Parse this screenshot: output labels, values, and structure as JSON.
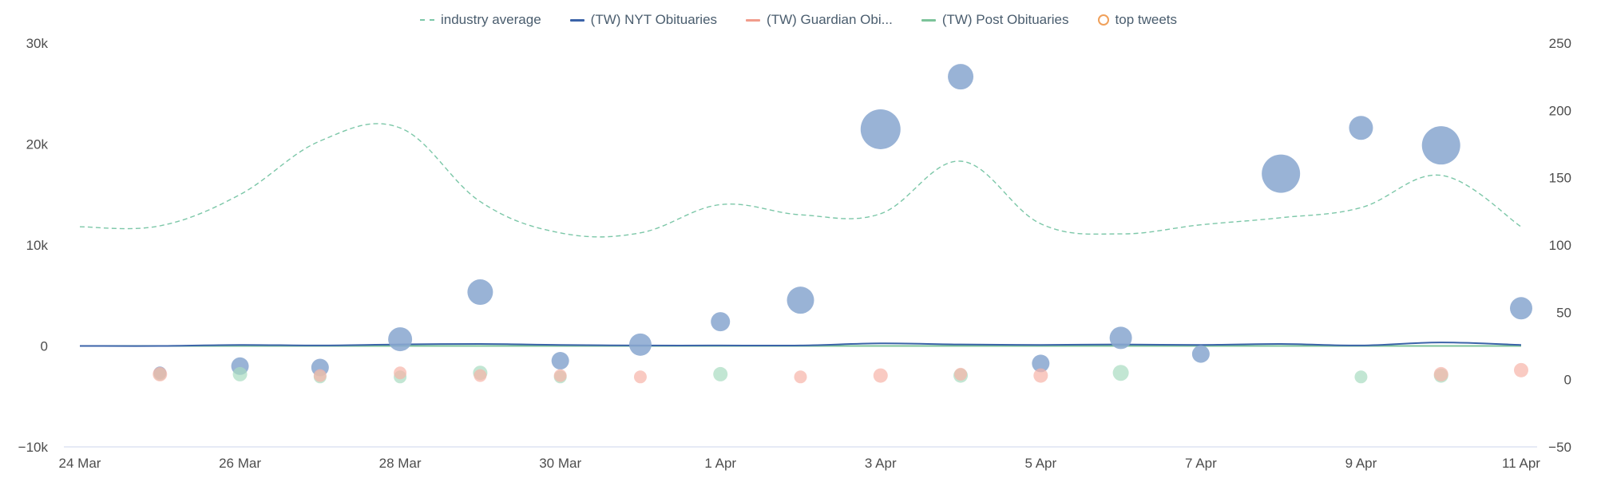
{
  "chart_data": {
    "type": "line",
    "left_axis": {
      "ticks": [
        -10000,
        0,
        10000,
        20000,
        30000
      ],
      "tick_labels": [
        "−10k",
        "0",
        "10k",
        "20k",
        "30k"
      ],
      "range": [
        -10000,
        30000
      ]
    },
    "right_axis": {
      "ticks": [
        -50,
        0,
        50,
        100,
        150,
        200,
        250
      ],
      "tick_labels": [
        "−50",
        "0",
        "50",
        "100",
        "150",
        "200",
        "250"
      ],
      "range": [
        -50,
        250
      ]
    },
    "x_tick_labels": [
      "24 Mar",
      "26 Mar",
      "28 Mar",
      "30 Mar",
      "1 Apr",
      "3 Apr",
      "5 Apr",
      "7 Apr",
      "9 Apr",
      "11 Apr"
    ],
    "x_tick_days": [
      0,
      2,
      4,
      6,
      8,
      10,
      12,
      14,
      16,
      18
    ],
    "legend_position": "top-center",
    "grid": false,
    "series": [
      {
        "name": "industry average",
        "style": "dashed",
        "axis": "left",
        "color": "#7cc7a8",
        "days": [
          0,
          1,
          2,
          3,
          4,
          5,
          6,
          7,
          8,
          9,
          10,
          11,
          12,
          13,
          14,
          15,
          16,
          17,
          18
        ],
        "values": [
          11800,
          11900,
          15000,
          20300,
          21600,
          14300,
          11200,
          11200,
          14000,
          13000,
          13100,
          18300,
          12100,
          11100,
          12000,
          12700,
          13700,
          16900,
          11800
        ]
      },
      {
        "name": "(TW) NYT Obituaries",
        "style": "line",
        "axis": "left",
        "color": "#3b63a8",
        "days": [
          0,
          1,
          2,
          3,
          4,
          5,
          6,
          7,
          8,
          9,
          10,
          11,
          12,
          13,
          14,
          15,
          16,
          17,
          18
        ],
        "values": [
          0,
          0,
          100,
          50,
          150,
          200,
          100,
          50,
          50,
          50,
          250,
          150,
          100,
          150,
          100,
          200,
          50,
          350,
          100
        ]
      },
      {
        "name": "(TW) Guardian Obi...",
        "style": "line",
        "axis": "left",
        "color": "#f19c8c",
        "days": [
          0,
          1,
          2,
          3,
          4,
          5,
          6,
          7,
          8,
          9,
          10,
          11,
          12,
          13,
          14,
          15,
          16,
          17,
          18
        ],
        "values": [
          0,
          0,
          0,
          0,
          0,
          0,
          0,
          0,
          0,
          0,
          0,
          0,
          0,
          0,
          0,
          0,
          0,
          0,
          0
        ]
      },
      {
        "name": "(TW) Post Obituaries",
        "style": "line",
        "axis": "left",
        "color": "#7cc39a",
        "days": [
          0,
          1,
          2,
          3,
          4,
          5,
          6,
          7,
          8,
          9,
          10,
          11,
          12,
          13,
          14,
          15,
          16,
          17,
          18
        ],
        "values": [
          0,
          0,
          0,
          0,
          0,
          0,
          0,
          0,
          0,
          0,
          0,
          0,
          0,
          0,
          0,
          0,
          0,
          0,
          0
        ]
      },
      {
        "name": "top tweets",
        "style": "bubble",
        "axis": "right",
        "color": "#f0a05a",
        "groups": [
          {
            "color": "#8ba8d0",
            "points": [
              {
                "day": 1,
                "value": 5,
                "r": 8
              },
              {
                "day": 2,
                "value": 10,
                "r": 11
              },
              {
                "day": 3,
                "value": 9,
                "r": 11
              },
              {
                "day": 4,
                "value": 30,
                "r": 15
              },
              {
                "day": 5,
                "value": 65,
                "r": 16
              },
              {
                "day": 6,
                "value": 14,
                "r": 11
              },
              {
                "day": 7,
                "value": 26,
                "r": 14
              },
              {
                "day": 8,
                "value": 43,
                "r": 12
              },
              {
                "day": 9,
                "value": 59,
                "r": 17
              },
              {
                "day": 10,
                "value": 186,
                "r": 25
              },
              {
                "day": 11,
                "value": 225,
                "r": 16
              },
              {
                "day": 12,
                "value": 12,
                "r": 11
              },
              {
                "day": 13,
                "value": 31,
                "r": 14
              },
              {
                "day": 14,
                "value": 19,
                "r": 11
              },
              {
                "day": 15,
                "value": 153,
                "r": 24
              },
              {
                "day": 16,
                "value": 187,
                "r": 15
              },
              {
                "day": 17,
                "value": 174,
                "r": 24
              },
              {
                "day": 18,
                "value": 53,
                "r": 14
              }
            ]
          },
          {
            "color": "#a8dcc0",
            "points": [
              {
                "day": 1,
                "value": 4,
                "r": 8
              },
              {
                "day": 2,
                "value": 4,
                "r": 9
              },
              {
                "day": 3,
                "value": 2,
                "r": 8
              },
              {
                "day": 4,
                "value": 2,
                "r": 8
              },
              {
                "day": 5,
                "value": 5,
                "r": 9
              },
              {
                "day": 6,
                "value": 2,
                "r": 8
              },
              {
                "day": 8,
                "value": 4,
                "r": 9
              },
              {
                "day": 11,
                "value": 3,
                "r": 9
              },
              {
                "day": 13,
                "value": 5,
                "r": 10
              },
              {
                "day": 16,
                "value": 2,
                "r": 8
              },
              {
                "day": 17,
                "value": 3,
                "r": 9
              }
            ]
          },
          {
            "color": "#f6b3a8",
            "points": [
              {
                "day": 1,
                "value": 4,
                "r": 9
              },
              {
                "day": 3,
                "value": 3,
                "r": 8
              },
              {
                "day": 4,
                "value": 5,
                "r": 8
              },
              {
                "day": 5,
                "value": 3,
                "r": 8
              },
              {
                "day": 6,
                "value": 3,
                "r": 8
              },
              {
                "day": 7,
                "value": 2,
                "r": 8
              },
              {
                "day": 9,
                "value": 2,
                "r": 8
              },
              {
                "day": 10,
                "value": 3,
                "r": 9
              },
              {
                "day": 11,
                "value": 4,
                "r": 8
              },
              {
                "day": 12,
                "value": 3,
                "r": 9
              },
              {
                "day": 17,
                "value": 4,
                "r": 9
              },
              {
                "day": 18,
                "value": 7,
                "r": 9
              }
            ]
          }
        ]
      }
    ]
  }
}
